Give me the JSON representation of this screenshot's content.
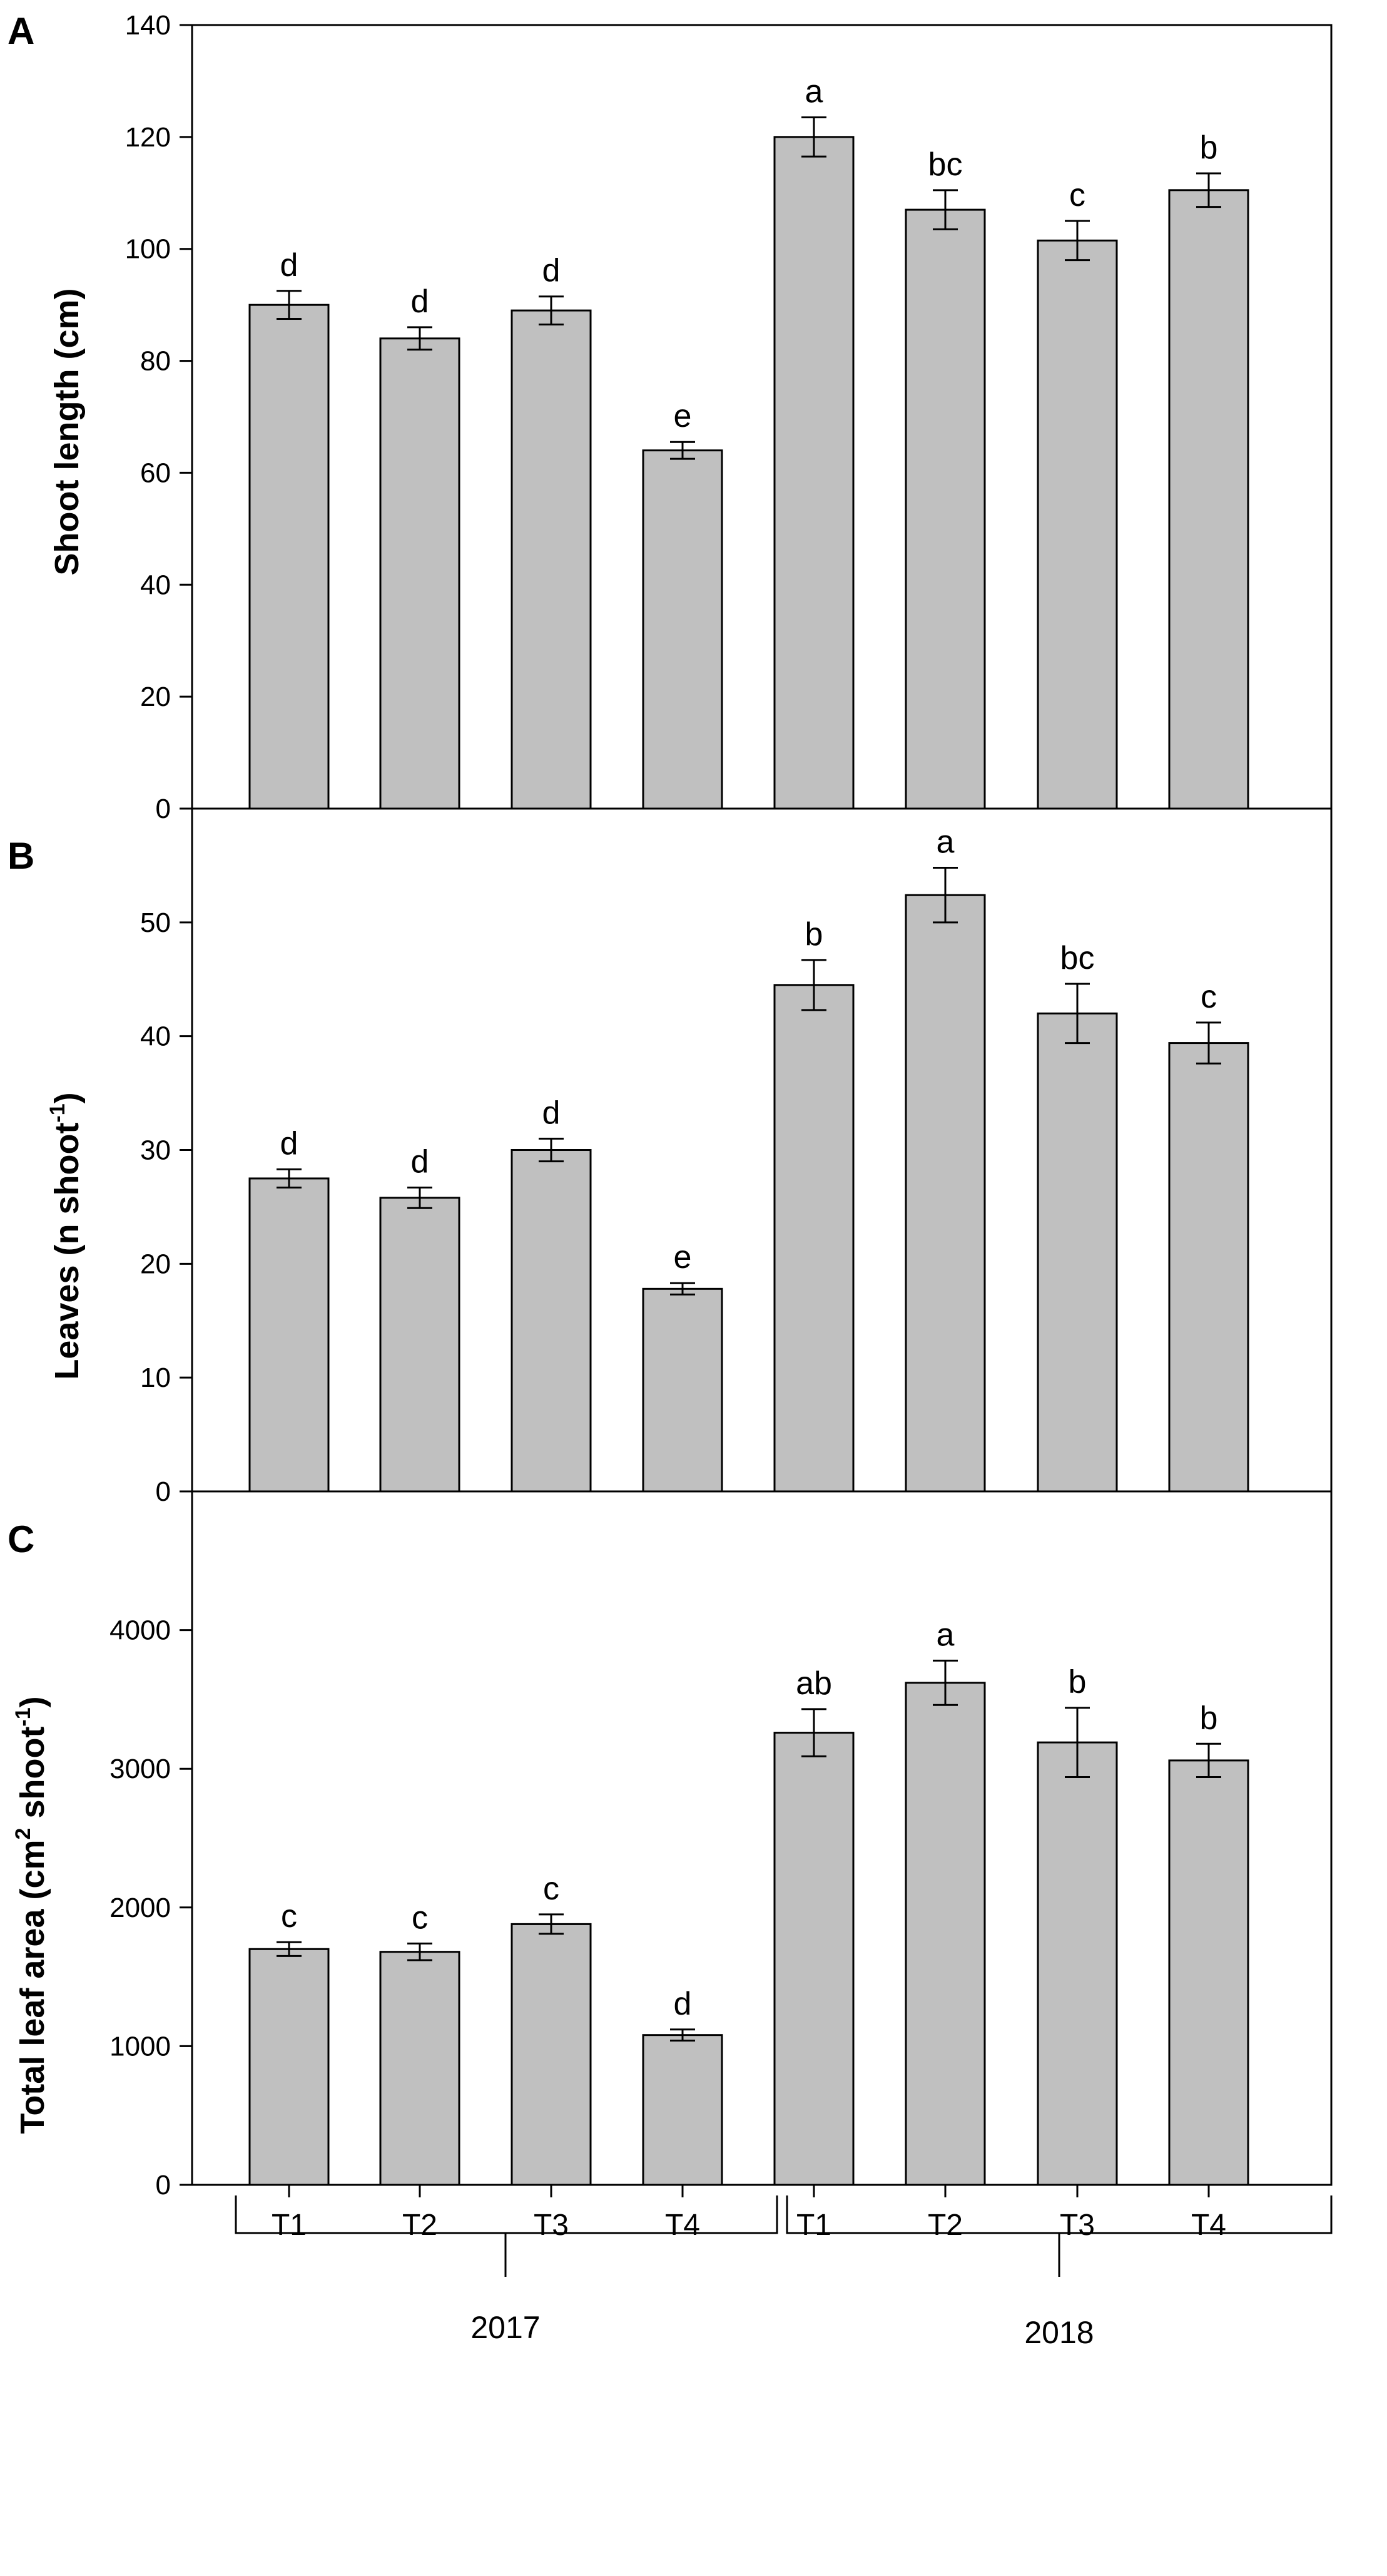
{
  "chart_data": [
    {
      "type": "bar",
      "panel": "A",
      "ylabel_text": "Shoot length (cm)",
      "ylim": [
        0,
        140
      ],
      "yticks": [
        "0",
        "20",
        "40",
        "60",
        "80",
        "100",
        "120",
        "140"
      ],
      "values": [
        90,
        84,
        89,
        64,
        120,
        107,
        101.5,
        110.5
      ],
      "errors": [
        2.5,
        2,
        2.5,
        1.5,
        3.5,
        3.5,
        3.5,
        3
      ],
      "letters": [
        "d",
        "d",
        "d",
        "e",
        "a",
        "bc",
        "c",
        "b"
      ]
    },
    {
      "type": "bar",
      "panel": "B",
      "ylabel_main": "Leaves (n shoot",
      "ylabel_sup": "-1",
      "ylabel_end": ")",
      "ylim": [
        0,
        60
      ],
      "yticks": [
        "0",
        "10",
        "20",
        "30",
        "40",
        "50"
      ],
      "values": [
        27.5,
        25.8,
        30,
        17.8,
        44.5,
        52.4,
        42,
        39.4
      ],
      "errors": [
        0.8,
        0.9,
        1,
        0.5,
        2.2,
        2.4,
        2.6,
        1.8
      ],
      "letters": [
        "d",
        "d",
        "d",
        "e",
        "b",
        "a",
        "bc",
        "c"
      ]
    },
    {
      "type": "bar",
      "panel": "C",
      "ylabel_main": "Total leaf area (cm",
      "ylabel_sup1": "2",
      "ylabel_mid": " shoot",
      "ylabel_sup2": "-1",
      "ylabel_end": ")",
      "ylim": [
        0,
        5000
      ],
      "yticks": [
        "0",
        "1000",
        "2000",
        "3000",
        "4000"
      ],
      "values": [
        1700,
        1680,
        1880,
        1080,
        3260,
        3620,
        3190,
        3060
      ],
      "errors": [
        50,
        60,
        70,
        40,
        170,
        160,
        250,
        120
      ],
      "letters": [
        "c",
        "c",
        "c",
        "d",
        "ab",
        "a",
        "b",
        "b"
      ]
    }
  ],
  "categories": [
    "T1",
    "T2",
    "T3",
    "T4",
    "T1",
    "T2",
    "T3",
    "T4"
  ],
  "groups": [
    "2017",
    "2018"
  ],
  "colors": {
    "bar": "#c0c0c0",
    "line": "#000000"
  }
}
